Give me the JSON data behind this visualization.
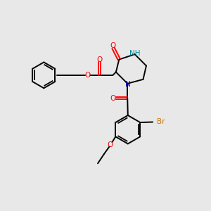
{
  "background_color": "#e8e8e8",
  "bond_color": "#000000",
  "oxygen_color": "#ff0000",
  "nitrogen_color": "#0000cc",
  "bromine_color": "#cc7700",
  "nh_color": "#008899",
  "figsize": [
    3.0,
    3.0
  ],
  "dpi": 100,
  "xlim": [
    0,
    10
  ],
  "ylim": [
    0,
    10
  ]
}
